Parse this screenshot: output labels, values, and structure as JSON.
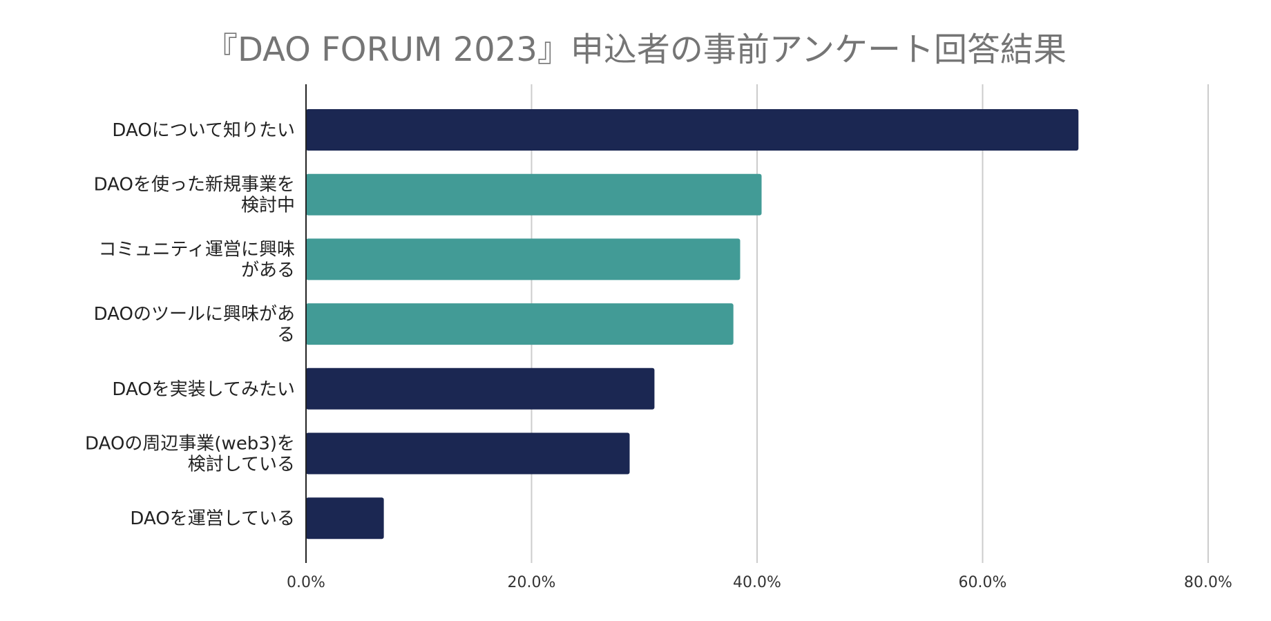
{
  "chart_data": {
    "type": "bar",
    "orientation": "horizontal",
    "title": "『DAO FORUM 2023』申込者の事前アンケート回答結果",
    "categories": [
      [
        "DAOについて知りたい"
      ],
      [
        "DAOを使った新規事業を",
        "検討中"
      ],
      [
        "コミュニティ運営に興味",
        "がある"
      ],
      [
        "DAOのツールに興味があ",
        "る"
      ],
      [
        "DAOを実装してみたい"
      ],
      [
        "DAOの周辺事業(web3)を",
        "検討している"
      ],
      [
        "DAOを運営している"
      ]
    ],
    "values": [
      68.5,
      40.4,
      38.5,
      37.9,
      30.9,
      28.7,
      6.9
    ],
    "bar_colors": [
      "#1b2752",
      "#429b96",
      "#429b96",
      "#429b96",
      "#1b2752",
      "#1b2752",
      "#1b2752"
    ],
    "xlim": [
      0,
      80
    ],
    "x_ticks": [
      0,
      20,
      40,
      60,
      80
    ],
    "x_tick_labels": [
      "0.0%",
      "20.0%",
      "40.0%",
      "60.0%",
      "80.0%"
    ],
    "grid": true,
    "xlabel": "",
    "ylabel": ""
  },
  "colors": {
    "grid": "#cccccc",
    "axis": "#222222",
    "title": "#757575"
  }
}
